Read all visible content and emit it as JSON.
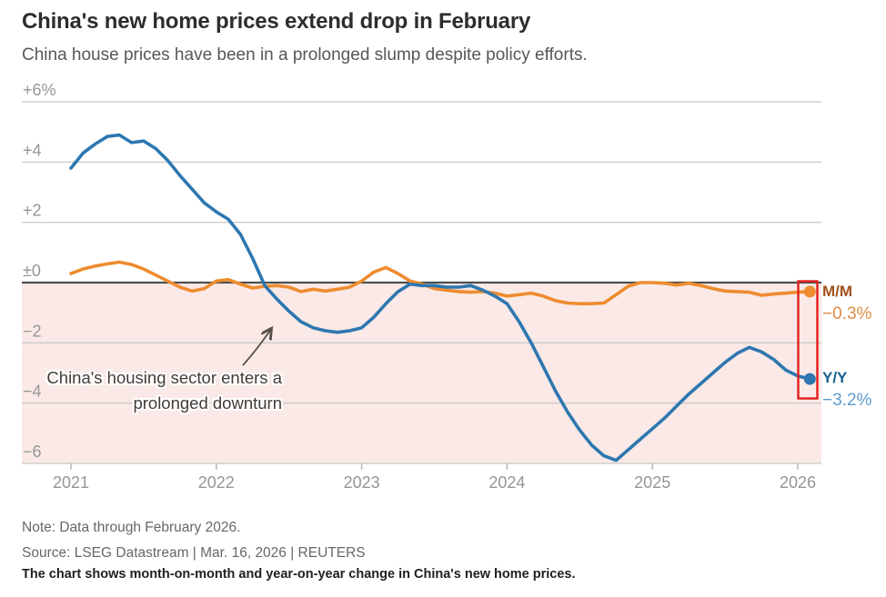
{
  "header": {
    "title": "China's new home prices extend drop in February",
    "subtitle": "China house prices have been in a prolonged slump despite policy efforts."
  },
  "annotation": {
    "line1": "China's housing sector enters a",
    "line2": "prolonged downturn"
  },
  "series_labels": {
    "mm": {
      "name": "M/M",
      "value": "−0.3%"
    },
    "yy": {
      "name": "Y/Y",
      "value": "−3.2%"
    }
  },
  "footer": {
    "note": "Note: Data through February 2026.",
    "source": "Source: LSEG Datastream | Mar. 16, 2026 | REUTERS",
    "caption": "The chart shows month-on-month and year-on-year change in China's new home prices."
  },
  "chart_data": {
    "type": "line",
    "title": "China's new home prices extend drop in February",
    "frequency": "monthly",
    "x_start": "2021-01",
    "x_end": "2026-02",
    "ylim": [
      -6,
      6
    ],
    "grid": true,
    "shaded_region": {
      "below": 0,
      "color": "#fae9e6"
    },
    "highlight_box": {
      "color": "#e0201c",
      "label": "latest values highlighted"
    },
    "y_axis": {
      "ticks": [
        {
          "label": "+6%",
          "value": 6
        },
        {
          "label": "+4",
          "value": 4
        },
        {
          "label": "+2",
          "value": 2
        },
        {
          "label": "±0",
          "value": 0
        },
        {
          "label": "−2",
          "value": -2
        },
        {
          "label": "−4",
          "value": -4
        },
        {
          "label": "−6",
          "value": -6
        }
      ]
    },
    "x_axis": {
      "tick_labels": [
        "2021",
        "2022",
        "2023",
        "2024",
        "2025",
        "2026"
      ]
    },
    "series": [
      {
        "name": "M/M",
        "color": "#ee8c2f",
        "end_value_label": "−0.3%",
        "values": [
          0.3,
          0.45,
          0.55,
          0.62,
          0.68,
          0.6,
          0.45,
          0.25,
          0.05,
          -0.15,
          -0.28,
          -0.2,
          0.05,
          0.1,
          -0.05,
          -0.18,
          -0.12,
          -0.1,
          -0.15,
          -0.3,
          -0.22,
          -0.28,
          -0.22,
          -0.15,
          0.05,
          0.35,
          0.5,
          0.3,
          0.05,
          -0.05,
          -0.2,
          -0.25,
          -0.3,
          -0.32,
          -0.3,
          -0.35,
          -0.45,
          -0.4,
          -0.35,
          -0.45,
          -0.6,
          -0.68,
          -0.7,
          -0.7,
          -0.68,
          -0.4,
          -0.12,
          0.0,
          0.0,
          -0.02,
          -0.08,
          -0.02,
          -0.1,
          -0.2,
          -0.28,
          -0.3,
          -0.32,
          -0.42,
          -0.38,
          -0.35,
          -0.32,
          -0.3
        ]
      },
      {
        "name": "Y/Y",
        "color": "#2e77b0",
        "end_value_label": "−3.2%",
        "values": [
          3.8,
          4.3,
          4.6,
          4.85,
          4.9,
          4.65,
          4.7,
          4.45,
          4.05,
          3.55,
          3.1,
          2.65,
          2.35,
          2.1,
          1.6,
          0.8,
          -0.1,
          -0.55,
          -0.95,
          -1.3,
          -1.5,
          -1.6,
          -1.65,
          -1.6,
          -1.5,
          -1.15,
          -0.7,
          -0.3,
          -0.05,
          -0.1,
          -0.1,
          -0.15,
          -0.15,
          -0.1,
          -0.25,
          -0.45,
          -0.7,
          -1.3,
          -2.0,
          -2.8,
          -3.6,
          -4.3,
          -4.9,
          -5.4,
          -5.75,
          -5.9,
          -5.55,
          -5.2,
          -4.85,
          -4.5,
          -4.1,
          -3.7,
          -3.35,
          -3.0,
          -2.65,
          -2.35,
          -2.15,
          -2.3,
          -2.55,
          -2.9,
          -3.1,
          -3.2
        ]
      }
    ],
    "legend_position": "right-end-labels"
  },
  "colors": {
    "mm_line": "#ee8c2f",
    "yy_line": "#2e77b0",
    "shade_pink": "#fae9e6",
    "highlight_red": "#e0201c",
    "zero_line": "#4d4d4d",
    "gridline": "#cccccc",
    "axis_text": "#969696"
  }
}
